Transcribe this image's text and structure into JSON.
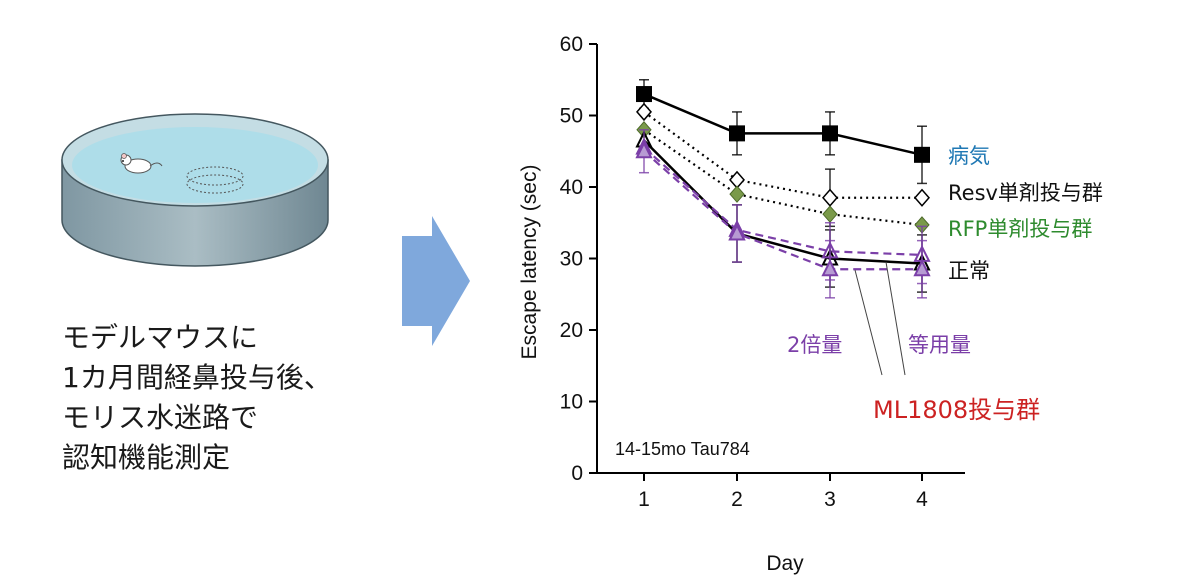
{
  "left_panel": {
    "lines": [
      "モデルマウスに",
      "1カ月間経鼻投与後、",
      "モリス水迷路で",
      "認知機能測定"
    ]
  },
  "icons": {
    "dish": "petri-dish-with-mouse-icon",
    "arrow": "right-arrow-icon"
  },
  "chart_data": {
    "type": "line",
    "xlabel": "Day",
    "ylabel": "Escape latency (sec)",
    "x": [
      1,
      2,
      3,
      4
    ],
    "xticks": [
      "1",
      "2",
      "3",
      "4"
    ],
    "ylim": [
      0,
      60
    ],
    "yticks": [
      "0",
      "10",
      "20",
      "30",
      "40",
      "50",
      "60"
    ],
    "annotation": "14-15mo Tau784",
    "group_label": "ML1808投与群",
    "series": [
      {
        "name": "病気",
        "values": [
          53,
          47.5,
          47.5,
          44.5
        ],
        "err": [
          2,
          3,
          3,
          4
        ],
        "style": "solid",
        "marker": "square-filled",
        "color": "#000000",
        "label_color": "#1f78b4"
      },
      {
        "name": "Resv単剤投与群",
        "values": [
          50.5,
          41,
          38.5,
          38.5
        ],
        "err": [
          0,
          0,
          4,
          0
        ],
        "style": "dotted",
        "marker": "diamond-open",
        "color": "#000000",
        "label_color": "#111111"
      },
      {
        "name": "RFP単剤投与群",
        "values": [
          48,
          39,
          36.2,
          34.7
        ],
        "err": [
          0,
          0,
          0,
          0
        ],
        "style": "dotted",
        "marker": "diamond-filled",
        "color": "#000000",
        "marker_color": "#7a9a4a",
        "label_color": "#2e8b2e"
      },
      {
        "name": "正常",
        "values": [
          46.5,
          33.5,
          30,
          29.3
        ],
        "err": [
          0,
          4,
          4,
          4
        ],
        "style": "solid",
        "marker": "triangle-open",
        "color": "#000000",
        "label_color": "#111111"
      },
      {
        "name": "等用量",
        "values": [
          45.5,
          34,
          31,
          30.5
        ],
        "err": [
          0,
          0,
          4,
          4
        ],
        "style": "dashed",
        "marker": "triangle-open",
        "color": "#7b3fa8",
        "label_color": "#7b3fa8"
      },
      {
        "name": "2倍量",
        "values": [
          45,
          33.5,
          28.5,
          28.5
        ],
        "err": [
          3,
          4,
          4,
          4
        ],
        "style": "dashed",
        "marker": "triangle-filled",
        "color": "#7b3fa8",
        "label_color": "#7b3fa8"
      }
    ],
    "group_label_color": "#cc2222"
  }
}
